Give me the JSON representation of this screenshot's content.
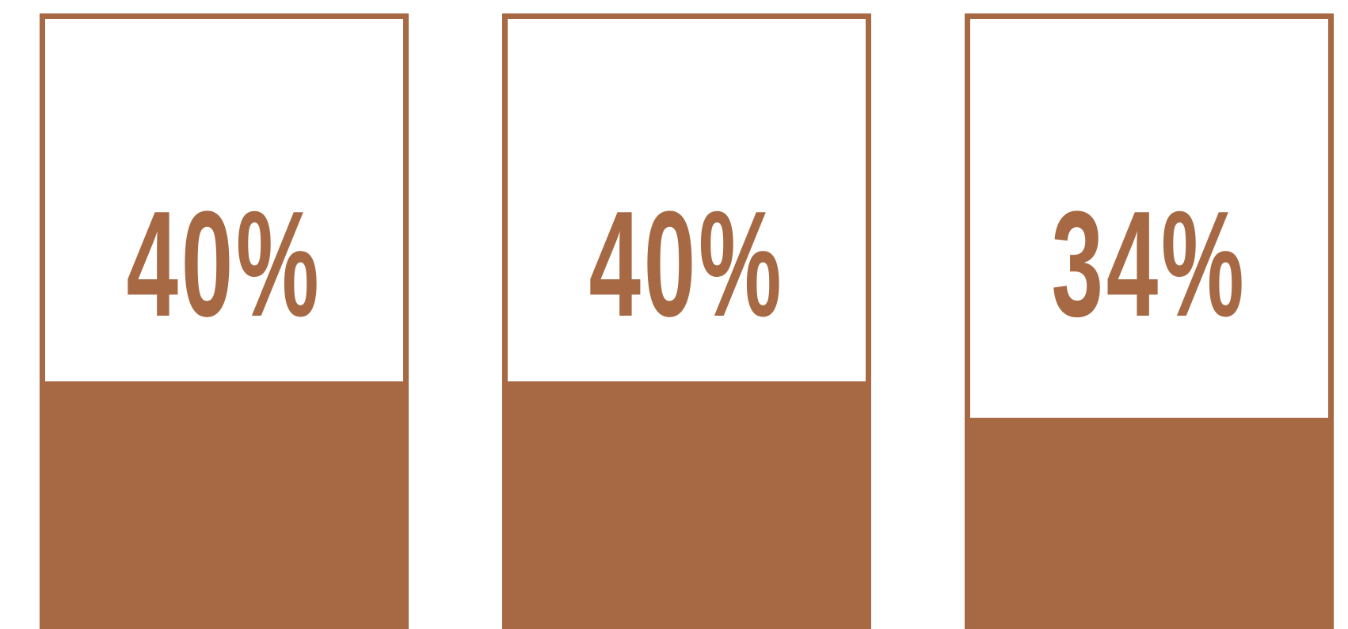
{
  "chart_data": {
    "type": "bar",
    "categories": [
      "",
      "",
      ""
    ],
    "values": [
      40,
      40,
      34
    ],
    "value_labels": [
      "40%",
      "40%",
      "34%"
    ],
    "ylim": [
      0,
      100
    ],
    "unit": "%",
    "color": "#A66943",
    "title": "",
    "xlabel": "",
    "ylabel": "",
    "grid": false
  }
}
